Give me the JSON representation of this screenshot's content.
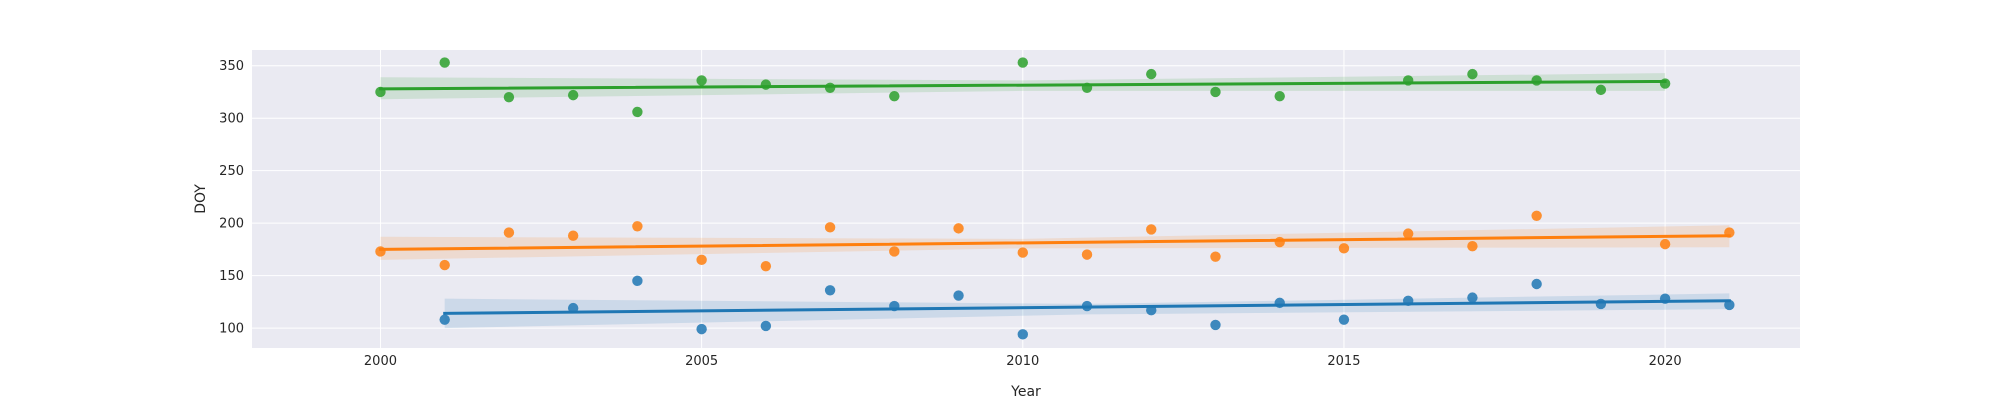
{
  "chart_data": {
    "type": "scatter",
    "title": "",
    "xlabel": "Year",
    "ylabel": "DOY",
    "xlim": [
      1998,
      2022.1
    ],
    "ylim": [
      81,
      365
    ],
    "xticks": [
      2000,
      2005,
      2010,
      2015,
      2020
    ],
    "yticks": [
      100,
      150,
      200,
      250,
      300,
      350
    ],
    "grid": true,
    "colors": {
      "background": "#eaeaf2",
      "grid": "#ffffff"
    },
    "series": [
      {
        "color": "#1f77b4",
        "points": [
          [
            2001,
            108
          ],
          [
            2003,
            119
          ],
          [
            2004,
            145
          ],
          [
            2005,
            99
          ],
          [
            2006,
            102
          ],
          [
            2007,
            136
          ],
          [
            2008,
            121
          ],
          [
            2009,
            131
          ],
          [
            2010,
            94
          ],
          [
            2011,
            121
          ],
          [
            2012,
            117
          ],
          [
            2013,
            103
          ],
          [
            2014,
            124
          ],
          [
            2015,
            108
          ],
          [
            2016,
            126
          ],
          [
            2017,
            129
          ],
          [
            2018,
            142
          ],
          [
            2019,
            123
          ],
          [
            2020,
            128
          ],
          [
            2021,
            122
          ]
        ],
        "trend": {
          "x": [
            2001,
            2021
          ],
          "y": [
            114,
            126
          ]
        },
        "band": {
          "x": [
            2001,
            2011,
            2021
          ],
          "lower": [
            100,
            113,
            118
          ],
          "upper": [
            128,
            123,
            133
          ]
        }
      },
      {
        "color": "#ff7f0e",
        "points": [
          [
            2000,
            173
          ],
          [
            2001,
            160
          ],
          [
            2002,
            191
          ],
          [
            2003,
            188
          ],
          [
            2004,
            197
          ],
          [
            2005,
            165
          ],
          [
            2006,
            159
          ],
          [
            2007,
            196
          ],
          [
            2008,
            173
          ],
          [
            2009,
            195
          ],
          [
            2010,
            172
          ],
          [
            2011,
            170
          ],
          [
            2012,
            194
          ],
          [
            2013,
            168
          ],
          [
            2014,
            182
          ],
          [
            2015,
            176
          ],
          [
            2016,
            190
          ],
          [
            2017,
            178
          ],
          [
            2018,
            207
          ],
          [
            2020,
            180
          ],
          [
            2021,
            191
          ]
        ],
        "trend": {
          "x": [
            2000,
            2021
          ],
          "y": [
            175,
            188
          ]
        },
        "band": {
          "x": [
            2000,
            2010,
            2021
          ],
          "lower": [
            165,
            176,
            177
          ],
          "upper": [
            187,
            185,
            198
          ]
        }
      },
      {
        "color": "#2ca02c",
        "points": [
          [
            2000,
            325
          ],
          [
            2001,
            353
          ],
          [
            2002,
            320
          ],
          [
            2003,
            322
          ],
          [
            2004,
            306
          ],
          [
            2005,
            336
          ],
          [
            2006,
            332
          ],
          [
            2007,
            329
          ],
          [
            2008,
            321
          ],
          [
            2010,
            353
          ],
          [
            2011,
            329
          ],
          [
            2012,
            342
          ],
          [
            2013,
            325
          ],
          [
            2014,
            321
          ],
          [
            2016,
            336
          ],
          [
            2017,
            342
          ],
          [
            2018,
            336
          ],
          [
            2019,
            327
          ],
          [
            2020,
            333
          ]
        ],
        "trend": {
          "x": [
            2000,
            2020
          ],
          "y": [
            328,
            335
          ]
        },
        "band": {
          "x": [
            2000,
            2010,
            2020
          ],
          "lower": [
            318,
            326,
            326
          ],
          "upper": [
            339,
            336,
            343
          ]
        }
      }
    ]
  }
}
